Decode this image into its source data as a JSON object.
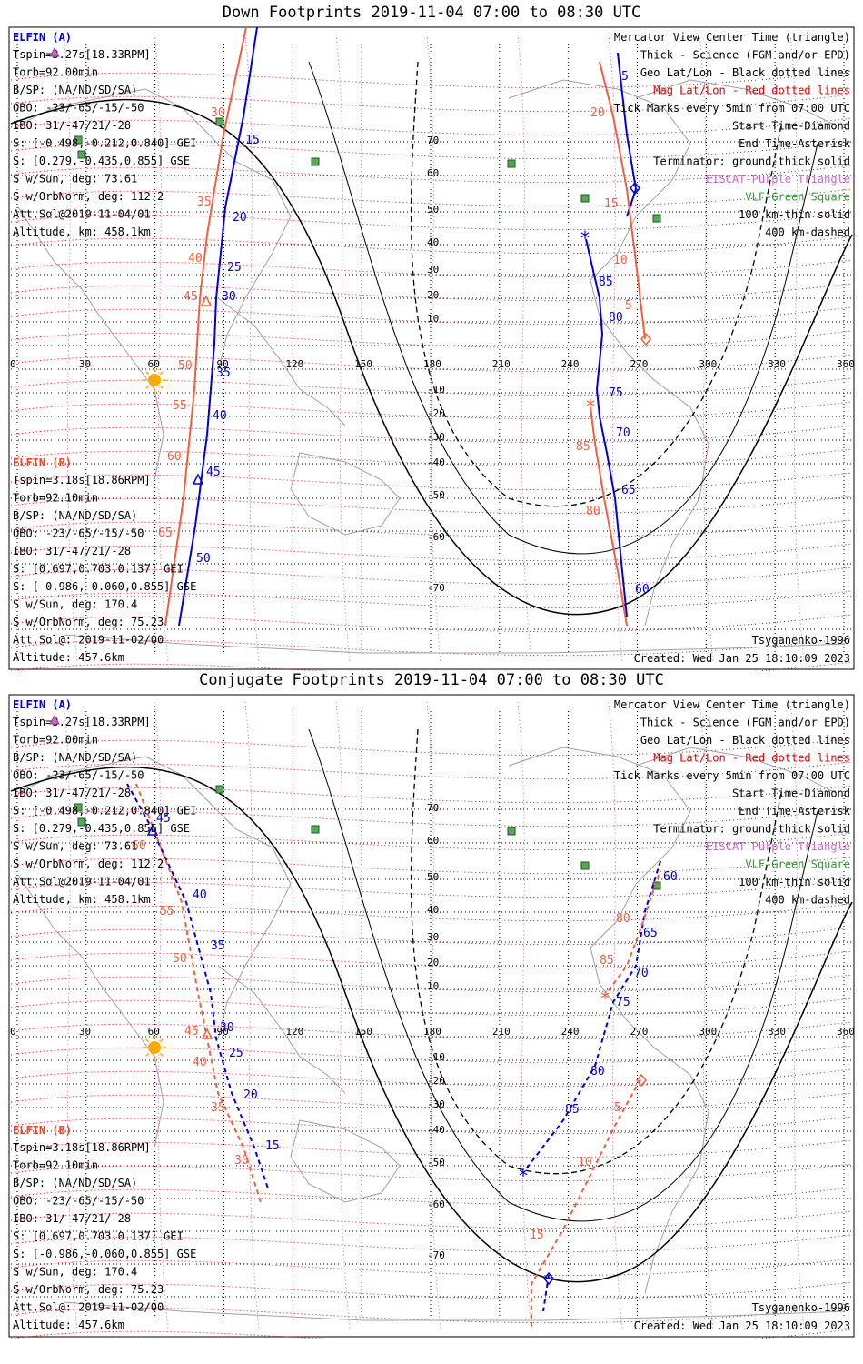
{
  "panels": [
    {
      "title": "Down Footprints 2019-11-04 07:00 to 08:30 UTC",
      "elfin_a": {
        "name": "ELFIN (A)",
        "lines": [
          "Tspin=3.27s[18.33RPM]",
          "Torb=92.00min",
          "B/SP: (NA/ND/SD/SA)",
          "OBO: -23/-65/-15/-50",
          "IBO: 31/-47/21/-28",
          "S: [-0.498,-0.212,0.840] GEI",
          "S: [0.279,-0.435,0.855] GSE",
          "S w/Sun, deg: 73.61",
          "S w/OrbNorm, deg: 112.2",
          "Att.Sol@2019-11-04/01",
          "Altitude, km: 458.1km"
        ]
      },
      "elfin_b": {
        "name": "ELFIN (B)",
        "lines": [
          "Tspin=3.18s[18.86RPM]",
          "Torb=92.10min",
          "B/SP: (NA/ND/SD/SA)",
          "OBO: -23/-65/-15/-50",
          "IBO: 31/-47/21/-28",
          "S: [0.697,0.703,0.137] GEI",
          "S: [-0.986,-0.060,0.855] GSE",
          "S w/Sun, deg: 170.4",
          "S w/OrbNorm, deg: 75.23",
          "Att.Sol@: 2019-11-02/00",
          "Altitude: 457.6km"
        ]
      },
      "legend": [
        {
          "text": "Mercator View Center Time (triangle)",
          "color": "#000000"
        },
        {
          "text": "Thick - Science (FGM and/or EPD)",
          "color": "#000000"
        },
        {
          "text": "Geo Lat/Lon - Black dotted lines",
          "color": "#000000"
        },
        {
          "text": "Mag Lat/Lon - Red dotted lines",
          "color": "#e00000"
        },
        {
          "text": "Tick Marks every 5min from 07:00 UTC",
          "color": "#000000"
        },
        {
          "text": "Start Time-Diamond",
          "color": "#000000"
        },
        {
          "text": "End Time-Asterisk",
          "color": "#000000"
        },
        {
          "text": "Terminator: ground-thick solid",
          "color": "#000000"
        },
        {
          "text": "EISCAT-Purple Triangle",
          "color": "#cc66cc"
        },
        {
          "text": "VLF-Green Square",
          "color": "#339933"
        },
        {
          "text": "100 km-thin solid",
          "color": "#000000"
        },
        {
          "text": "400 km-dashed",
          "color": "#000000"
        }
      ],
      "model": "Tsyganenko-1996",
      "created": "Created: Wed Jan 25 18:10:09 2023"
    },
    {
      "title": "Conjugate Footprints 2019-11-04 07:00 to 08:30 UTC",
      "elfin_a": {
        "name": "ELFIN (A)",
        "lines": [
          "Tspin=3.27s[18.33RPM]",
          "Torb=92.00min",
          "B/SP: (NA/ND/SD/SA)",
          "OBO: -23/-65/-15/-50",
          "IBO: 31/-47/21/-28",
          "S: [-0.498,-0.212,0.840] GEI",
          "S: [0.279,-0.435,0.855] GSE",
          "S w/Sun, deg: 73.61",
          "S w/OrbNorm, deg: 112.2",
          "Att.Sol@2019-11-04/01",
          "Altitude, km: 458.1km"
        ]
      },
      "elfin_b": {
        "name": "ELFIN (B)",
        "lines": [
          "Tspin=3.18s[18.86RPM]",
          "Torb=92.10min",
          "B/SP: (NA/ND/SD/SA)",
          "OBO: -23/-65/-15/-50",
          "IBO: 31/-47/21/-28",
          "S: [0.697,0.703,0.137] GEI",
          "S: [-0.986,-0.060,0.855] GSE",
          "S w/Sun, deg: 170.4",
          "S w/OrbNorm, deg: 75.23",
          "Att.Sol@: 2019-11-02/00",
          "Altitude: 457.6km"
        ]
      },
      "legend": [
        {
          "text": "Mercator View Center Time (triangle)",
          "color": "#000000"
        },
        {
          "text": "Thick - Science (FGM and/or EPD)",
          "color": "#000000"
        },
        {
          "text": "Geo Lat/Lon - Black dotted lines",
          "color": "#000000"
        },
        {
          "text": "Mag Lat/Lon - Red dotted lines",
          "color": "#e00000"
        },
        {
          "text": "Tick Marks every 5min from 07:00 UTC",
          "color": "#000000"
        },
        {
          "text": "Start Time-Diamond",
          "color": "#000000"
        },
        {
          "text": "End Time-Asterisk",
          "color": "#000000"
        },
        {
          "text": "Terminator: ground-thick solid",
          "color": "#000000"
        },
        {
          "text": "EISCAT-Purple Triangle",
          "color": "#cc66cc"
        },
        {
          "text": "VLF-Green Square",
          "color": "#339933"
        },
        {
          "text": "100 km-thin solid",
          "color": "#000000"
        },
        {
          "text": "400 km-dashed",
          "color": "#000000"
        }
      ],
      "model": "Tsyganenko-1996",
      "created": "Created: Wed Jan 25 18:10:09 2023"
    }
  ],
  "lon_labels": [
    "0",
    "30",
    "60",
    "90",
    "120",
    "150",
    "180",
    "210",
    "240",
    "270",
    "300",
    "330",
    "360"
  ],
  "lat_labels": [
    "70",
    "60",
    "50",
    "40",
    "30",
    "20",
    "10",
    "-10",
    "-20",
    "-30",
    "-40",
    "-50",
    "-60",
    "-70"
  ],
  "colors": {
    "elfin_a": "#0000dd",
    "elfin_b": "#f06040",
    "mag_grid": "#e00000",
    "geo_grid": "#000000",
    "coast": "#a0a0a0",
    "vlf": "#55aa55",
    "eiscat": "#cc66cc",
    "sun": "#ffaa00"
  },
  "tracks": {
    "down_a_ticks": [
      "5",
      "10",
      "15",
      "20",
      "25",
      "30",
      "35",
      "40",
      "45",
      "50",
      "60",
      "65",
      "70",
      "75",
      "80",
      "85",
      "5",
      "10",
      "15",
      "20"
    ],
    "down_b_ticks": [
      "5",
      "10",
      "15",
      "20",
      "30",
      "35",
      "40",
      "45",
      "50",
      "55",
      "60",
      "80",
      "85"
    ],
    "conj_a_ticks": [
      "15",
      "20",
      "25",
      "30",
      "35",
      "40",
      "45",
      "60",
      "65",
      "70",
      "75",
      "80",
      "85"
    ],
    "conj_b_ticks": [
      "5",
      "10",
      "15",
      "30",
      "35",
      "40",
      "45",
      "50",
      "55",
      "60",
      "80",
      "85"
    ]
  }
}
